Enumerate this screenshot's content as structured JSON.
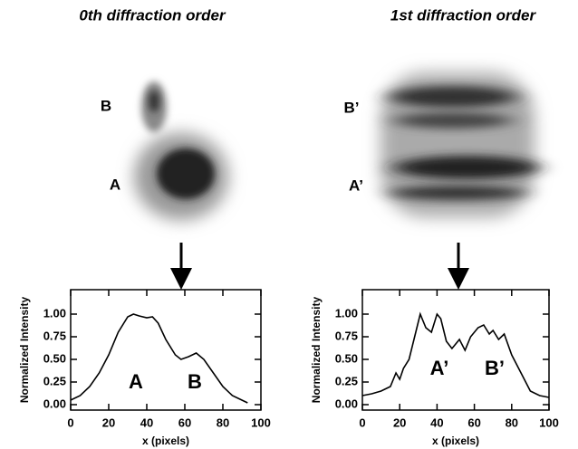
{
  "chart_data": [
    {
      "type": "line",
      "title": "0th diffraction order",
      "image_labels": [
        "B",
        "A"
      ],
      "annotations": [
        "A",
        "B"
      ],
      "x_label": "x (pixels)",
      "y_label": "Normalized Intensity",
      "x": [
        0,
        5,
        10,
        15,
        20,
        25,
        30,
        33,
        36,
        40,
        43,
        46,
        50,
        55,
        58,
        62,
        66,
        70,
        75,
        80,
        85,
        90,
        93
      ],
      "series": [
        {
          "color": "#000000",
          "values": [
            0.05,
            0.1,
            0.2,
            0.35,
            0.55,
            0.8,
            0.97,
            1.0,
            0.98,
            0.96,
            0.97,
            0.9,
            0.72,
            0.55,
            0.5,
            0.53,
            0.57,
            0.5,
            0.35,
            0.2,
            0.1,
            0.05,
            0.02
          ]
        }
      ],
      "xlim": [
        0,
        100
      ],
      "ylim": [
        -0.06,
        1.27
      ],
      "xticks": [
        0,
        20,
        40,
        60,
        80,
        100
      ],
      "yticks": [
        {
          "value": 0,
          "label": "0.00"
        },
        {
          "value": 0.25,
          "label": "0.25"
        },
        {
          "value": 0.5,
          "label": "0.50"
        },
        {
          "value": 0.75,
          "label": "0.75"
        },
        {
          "value": 1,
          "label": "1.00"
        }
      ]
    },
    {
      "type": "line",
      "title": "1st diffraction order",
      "image_labels": [
        "B’",
        "A’"
      ],
      "annotations": [
        "A’",
        "B’"
      ],
      "x_label": "x (pixels)",
      "y_label": "Normalized Intensity",
      "x": [
        0,
        5,
        10,
        15,
        18,
        20,
        22,
        25,
        28,
        31,
        34,
        37,
        40,
        42,
        45,
        48,
        52,
        55,
        58,
        62,
        65,
        68,
        70,
        73,
        76,
        80,
        85,
        90,
        95,
        100
      ],
      "series": [
        {
          "color": "#000000",
          "values": [
            0.1,
            0.12,
            0.15,
            0.2,
            0.35,
            0.28,
            0.4,
            0.5,
            0.75,
            1.0,
            0.85,
            0.8,
            1.0,
            0.95,
            0.7,
            0.62,
            0.72,
            0.6,
            0.75,
            0.85,
            0.88,
            0.78,
            0.82,
            0.72,
            0.78,
            0.55,
            0.35,
            0.15,
            0.1,
            0.08
          ]
        }
      ],
      "xlim": [
        0,
        100
      ],
      "ylim": [
        -0.06,
        1.27
      ],
      "xticks": [
        0,
        20,
        40,
        60,
        80,
        100
      ],
      "yticks": [
        {
          "value": 0,
          "label": "0.00"
        },
        {
          "value": 0.25,
          "label": "0.25"
        },
        {
          "value": 0.5,
          "label": "0.50"
        },
        {
          "value": 0.75,
          "label": "0.75"
        },
        {
          "value": 1,
          "label": "1.00"
        }
      ]
    }
  ]
}
